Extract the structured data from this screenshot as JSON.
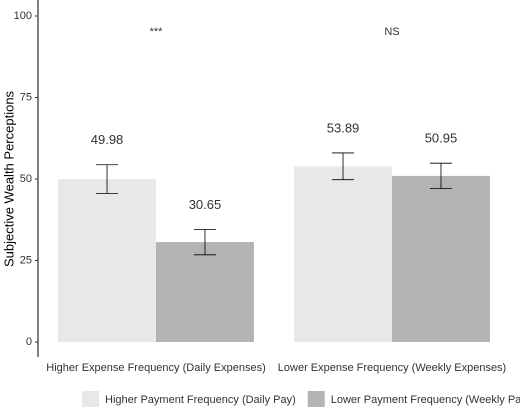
{
  "chart_data": {
    "type": "bar",
    "y_label": "Subjective Wealth Perceptions",
    "categories": [
      "Higher Expense Frequency (Daily Expenses)",
      "Lower Expense Frequency (Weekly Expenses)"
    ],
    "annotations": [
      "***",
      "NS"
    ],
    "series": [
      {
        "name": "Higher Payment Frequency (Daily Pay)",
        "color": "#e8e8e8",
        "values": [
          49.98,
          53.89
        ],
        "errors": [
          4.4,
          4.1
        ]
      },
      {
        "name": "Lower Payment Frequency (Weekly Pay)",
        "color": "#b3b3b3",
        "values": [
          30.65,
          50.95
        ],
        "errors": [
          3.9,
          3.9
        ]
      }
    ],
    "ylim": [
      0,
      100
    ],
    "yticks": [
      0,
      25,
      50,
      75,
      100
    ],
    "grid": false,
    "legend": "bottom"
  }
}
